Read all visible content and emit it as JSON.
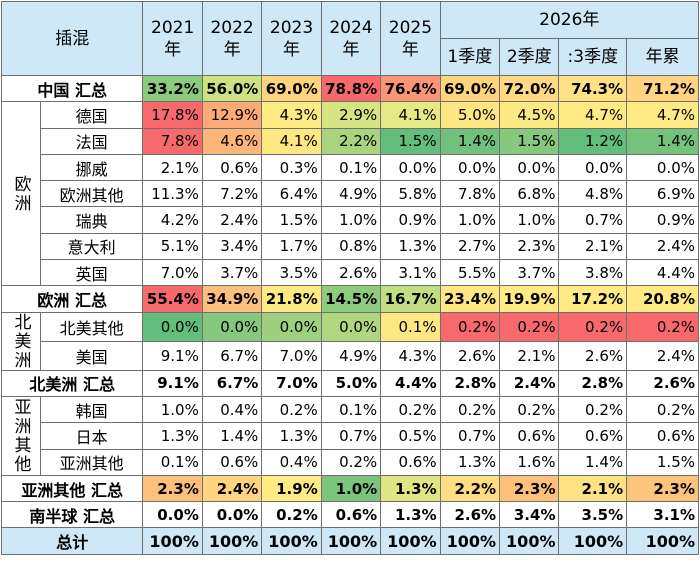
{
  "header": {
    "corner": "插混",
    "years": [
      "2021\n年",
      "2022\n年",
      "2023\n年",
      "2024\n年",
      "2025\n年"
    ],
    "year2026": "2026年",
    "sub2026": [
      "1季度",
      "2季度",
      ":3季度",
      "年累"
    ]
  },
  "regions": {
    "europe": "欧洲",
    "north_america": "北美洲",
    "asia": "亚洲其他"
  },
  "colors": {
    "header_bg": "#cfe8f8",
    "high": "#f8696b",
    "mid": "#ffeb84",
    "low": "#63be7b"
  },
  "chart_data": {
    "type": "table",
    "columns": [
      "2021年",
      "2022年",
      "2023年",
      "2024年",
      "2025年",
      "1季度",
      "2季度",
      ":3季度",
      "年累"
    ],
    "rows": [
      {
        "label": "中国 汇总",
        "values": [
          "33.2%",
          "56.0%",
          "69.0%",
          "78.8%",
          "76.4%",
          "69.0%",
          "72.0%",
          "74.3%",
          "71.2%"
        ],
        "summary": true
      },
      {
        "label": "德国",
        "region": "europe",
        "values": [
          "17.8%",
          "12.9%",
          "4.3%",
          "2.9%",
          "4.1%",
          "5.0%",
          "4.5%",
          "4.7%",
          "4.7%"
        ]
      },
      {
        "label": "法国",
        "region": "europe",
        "values": [
          "7.8%",
          "4.6%",
          "4.1%",
          "2.2%",
          "1.5%",
          "1.4%",
          "1.5%",
          "1.2%",
          "1.4%"
        ]
      },
      {
        "label": "挪威",
        "region": "europe",
        "values": [
          "2.1%",
          "0.6%",
          "0.3%",
          "0.1%",
          "0.0%",
          "0.0%",
          "0.0%",
          "0.0%",
          "0.0%"
        ]
      },
      {
        "label": "欧洲其他",
        "region": "europe",
        "values": [
          "11.3%",
          "7.2%",
          "6.4%",
          "4.9%",
          "5.8%",
          "7.8%",
          "6.8%",
          "4.8%",
          "6.9%"
        ]
      },
      {
        "label": "瑞典",
        "region": "europe",
        "values": [
          "4.2%",
          "2.4%",
          "1.5%",
          "1.0%",
          "0.9%",
          "1.0%",
          "1.0%",
          "0.7%",
          "0.9%"
        ]
      },
      {
        "label": "意大利",
        "region": "europe",
        "values": [
          "5.1%",
          "3.4%",
          "1.7%",
          "0.8%",
          "1.3%",
          "2.7%",
          "2.3%",
          "2.1%",
          "2.4%"
        ]
      },
      {
        "label": "英国",
        "region": "europe",
        "values": [
          "7.0%",
          "3.7%",
          "3.5%",
          "2.6%",
          "3.1%",
          "5.5%",
          "3.7%",
          "3.8%",
          "4.4%"
        ]
      },
      {
        "label": "欧洲 汇总",
        "values": [
          "55.4%",
          "34.9%",
          "21.8%",
          "14.5%",
          "16.7%",
          "23.4%",
          "19.9%",
          "17.2%",
          "20.8%"
        ],
        "summary": true
      },
      {
        "label": "北美其他",
        "region": "north_america",
        "values": [
          "0.0%",
          "0.0%",
          "0.0%",
          "0.0%",
          "0.1%",
          "0.2%",
          "0.2%",
          "0.2%",
          "0.2%"
        ]
      },
      {
        "label": "美国",
        "region": "north_america",
        "values": [
          "9.1%",
          "6.7%",
          "7.0%",
          "4.9%",
          "4.3%",
          "2.6%",
          "2.1%",
          "2.6%",
          "2.4%"
        ]
      },
      {
        "label": "北美洲 汇总",
        "values": [
          "9.1%",
          "6.7%",
          "7.0%",
          "5.0%",
          "4.4%",
          "2.8%",
          "2.4%",
          "2.8%",
          "2.6%"
        ],
        "summary": true
      },
      {
        "label": "韩国",
        "region": "asia",
        "values": [
          "1.0%",
          "0.4%",
          "0.2%",
          "0.1%",
          "0.2%",
          "0.2%",
          "0.2%",
          "0.2%",
          "0.2%"
        ]
      },
      {
        "label": "日本",
        "region": "asia",
        "values": [
          "1.3%",
          "1.4%",
          "1.3%",
          "0.7%",
          "0.5%",
          "0.7%",
          "0.6%",
          "0.6%",
          "0.6%"
        ]
      },
      {
        "label": "亚洲其他",
        "region": "asia",
        "values": [
          "0.1%",
          "0.6%",
          "0.4%",
          "0.2%",
          "0.6%",
          "1.3%",
          "1.6%",
          "1.4%",
          "1.5%"
        ]
      },
      {
        "label": "亚洲其他 汇总",
        "values": [
          "2.3%",
          "2.4%",
          "1.9%",
          "1.0%",
          "1.3%",
          "2.2%",
          "2.3%",
          "2.1%",
          "2.3%"
        ],
        "summary": true
      },
      {
        "label": "南半球 汇总",
        "values": [
          "0.0%",
          "0.0%",
          "0.2%",
          "0.6%",
          "1.3%",
          "2.6%",
          "3.4%",
          "3.5%",
          "3.1%"
        ],
        "summary": true
      },
      {
        "label": "总计",
        "values": [
          "100%",
          "100%",
          "100%",
          "100%",
          "100%",
          "100%",
          "100%",
          "100%",
          "100%"
        ],
        "summary": true,
        "total": true
      }
    ],
    "cell_fills": {
      "中国 汇总": [
        "#8ccb7e",
        "#cde283",
        "#ffd47f",
        "#f8696b",
        "#fb9574",
        "#ffd47f",
        "#ffd981",
        "#ffe283",
        "#ffd37f"
      ],
      "德国": [
        "#f8696b",
        "#fcaa78",
        "#ffeb84",
        "#d6e482",
        "#e6e883",
        "#ffe683",
        "#fde982",
        "#ffe983",
        "#ffe983"
      ],
      "法国": [
        "#f8696b",
        "#fcb679",
        "#ffe783",
        "#aad380",
        "#63be7b",
        "#6fc17c",
        "#86c87d",
        "#63be7b",
        "#74c27c"
      ],
      "挪威": [
        "#ffffff",
        "#ffffff",
        "#ffffff",
        "#ffffff",
        "#ffffff",
        "#ffffff",
        "#ffffff",
        "#ffffff",
        "#ffffff"
      ],
      "欧洲其他": [
        "#ffffff",
        "#ffffff",
        "#ffffff",
        "#ffffff",
        "#ffffff",
        "#ffffff",
        "#ffffff",
        "#ffffff",
        "#ffffff"
      ],
      "瑞典": [
        "#ffffff",
        "#ffffff",
        "#ffffff",
        "#ffffff",
        "#ffffff",
        "#ffffff",
        "#ffffff",
        "#ffffff",
        "#ffffff"
      ],
      "意大利": [
        "#ffffff",
        "#ffffff",
        "#ffffff",
        "#ffffff",
        "#ffffff",
        "#ffffff",
        "#ffffff",
        "#ffffff",
        "#ffffff"
      ],
      "英国": [
        "#ffffff",
        "#ffffff",
        "#ffffff",
        "#ffffff",
        "#ffffff",
        "#ffffff",
        "#ffffff",
        "#ffffff",
        "#ffffff"
      ],
      "欧洲 汇总": [
        "#f8696b",
        "#fdbf7b",
        "#ffe984",
        "#8fcb7e",
        "#c2de82",
        "#ffe784",
        "#ffeb84",
        "#ffea84",
        "#ffeb84"
      ],
      "北美其他": [
        "#63be7b",
        "#86c87d",
        "#9dd07f",
        "#b1d680",
        "#ffe884",
        "#f8696b",
        "#f8696b",
        "#f8696b",
        "#f8696b"
      ],
      "美国": [
        "#ffffff",
        "#ffffff",
        "#ffffff",
        "#ffffff",
        "#ffffff",
        "#ffffff",
        "#ffffff",
        "#ffffff",
        "#ffffff"
      ],
      "北美洲 汇总": [
        "#ffffff",
        "#ffffff",
        "#ffffff",
        "#ffffff",
        "#ffffff",
        "#ffffff",
        "#ffffff",
        "#ffffff",
        "#ffffff"
      ],
      "韩国": [
        "#ffffff",
        "#ffffff",
        "#ffffff",
        "#ffffff",
        "#ffffff",
        "#ffffff",
        "#ffffff",
        "#ffffff",
        "#ffffff"
      ],
      "日本": [
        "#ffffff",
        "#ffffff",
        "#ffffff",
        "#ffffff",
        "#ffffff",
        "#ffffff",
        "#ffffff",
        "#ffffff",
        "#ffffff"
      ],
      "亚洲其他": [
        "#ffffff",
        "#ffffff",
        "#ffffff",
        "#ffffff",
        "#ffffff",
        "#ffffff",
        "#ffffff",
        "#ffffff",
        "#ffffff"
      ],
      "亚洲其他 汇总": [
        "#fcc07b",
        "#fed481",
        "#ffeb84",
        "#7bc57d",
        "#e0e683",
        "#ffdd82",
        "#fcc07b",
        "#ffe383",
        "#fdc47c"
      ],
      "南半球 汇总": [
        "#ffffff",
        "#ffffff",
        "#ffffff",
        "#ffffff",
        "#ffffff",
        "#ffffff",
        "#ffffff",
        "#ffffff",
        "#ffffff"
      ],
      "总计": [
        "#cfe8f8",
        "#cfe8f8",
        "#cfe8f8",
        "#cfe8f8",
        "#cfe8f8",
        "#cfe8f8",
        "#cfe8f8",
        "#cfe8f8",
        "#cfe8f8"
      ]
    }
  }
}
